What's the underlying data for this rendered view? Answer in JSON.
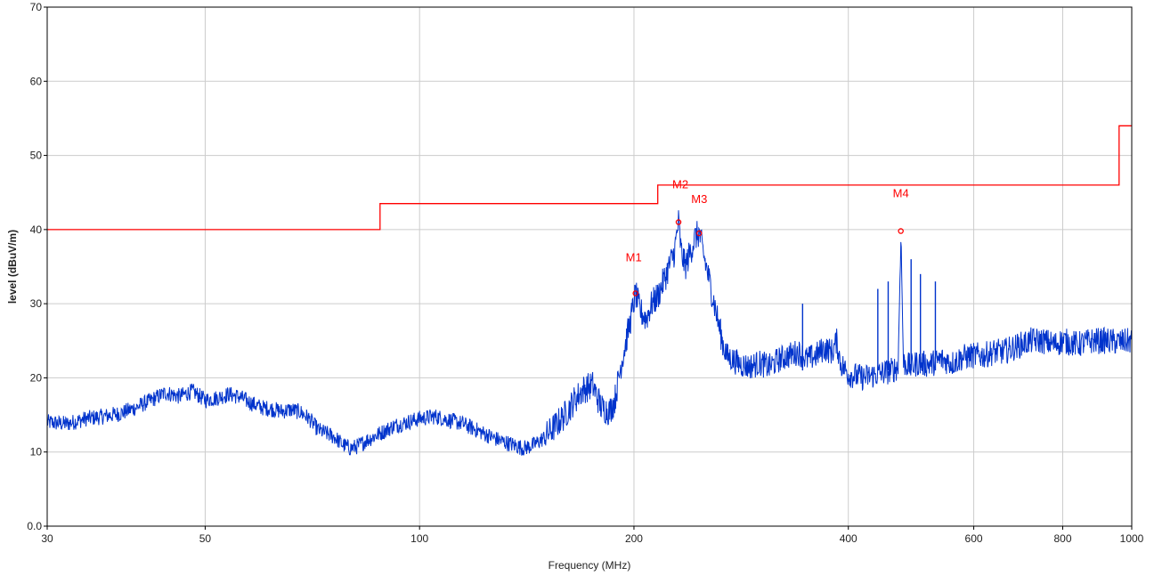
{
  "chart_data": {
    "type": "line",
    "title": "",
    "xlabel": "Frequency (MHz)",
    "ylabel": "level (dBuV/m)",
    "x_scale": "log",
    "xlim": [
      30,
      1000
    ],
    "ylim": [
      0,
      70
    ],
    "grid": true,
    "x_ticks": [
      30,
      50,
      100,
      200,
      400,
      600,
      800,
      1000
    ],
    "x_tick_labels": [
      "30",
      "50",
      "100",
      "200",
      "400",
      "600",
      "800",
      "1000"
    ],
    "y_ticks": [
      0,
      10,
      20,
      30,
      40,
      50,
      60,
      70
    ],
    "y_tick_labels": [
      "0.0",
      "10",
      "20",
      "30",
      "40",
      "50",
      "60",
      "70"
    ],
    "colors": {
      "limit": "#ff0000",
      "measurement": "#0033cc",
      "markers": "#ff0000",
      "grid": "#cccccc",
      "axis": "#000000"
    },
    "series": [
      {
        "role": "limit",
        "color": "#ff0000",
        "points": [
          [
            30,
            40
          ],
          [
            88,
            40
          ],
          [
            88,
            43.5
          ],
          [
            216,
            43.5
          ],
          [
            216,
            46
          ],
          [
            960,
            46
          ],
          [
            960,
            54
          ],
          [
            1000,
            54
          ]
        ]
      },
      {
        "role": "measurement",
        "color": "#0033cc",
        "points": [
          [
            30,
            14
          ],
          [
            32,
            13.8
          ],
          [
            34,
            14.5
          ],
          [
            36,
            14.8
          ],
          [
            38,
            15.2
          ],
          [
            40,
            16
          ],
          [
            42,
            17
          ],
          [
            44,
            18
          ],
          [
            46,
            17.5
          ],
          [
            48,
            18.2
          ],
          [
            50,
            17
          ],
          [
            52,
            17.3
          ],
          [
            54,
            17.8
          ],
          [
            56,
            17.4
          ],
          [
            58,
            16.6
          ],
          [
            60,
            16
          ],
          [
            62,
            15.8
          ],
          [
            64,
            15.5
          ],
          [
            66,
            15.7
          ],
          [
            68,
            15.4
          ],
          [
            70,
            14.5
          ],
          [
            72,
            13
          ],
          [
            74,
            12.5
          ],
          [
            76,
            12
          ],
          [
            78,
            11
          ],
          [
            80,
            10.5
          ],
          [
            82,
            10.8
          ],
          [
            84,
            11.5
          ],
          [
            88,
            12.5
          ],
          [
            92,
            13.5
          ],
          [
            96,
            14
          ],
          [
            100,
            14.5
          ],
          [
            105,
            14.8
          ],
          [
            110,
            14.3
          ],
          [
            115,
            13.8
          ],
          [
            120,
            13
          ],
          [
            125,
            12.2
          ],
          [
            130,
            11.5
          ],
          [
            135,
            11
          ],
          [
            140,
            10.5
          ],
          [
            145,
            11
          ],
          [
            150,
            12
          ],
          [
            155,
            13.5
          ],
          [
            160,
            15
          ],
          [
            165,
            17
          ],
          [
            170,
            18.5
          ],
          [
            175,
            19
          ],
          [
            180,
            16
          ],
          [
            185,
            15.5
          ],
          [
            188,
            17
          ],
          [
            192,
            22
          ],
          [
            196,
            26
          ],
          [
            199,
            29
          ],
          [
            201,
            31.4
          ],
          [
            204,
            29
          ],
          [
            208,
            28
          ],
          [
            212,
            30
          ],
          [
            216,
            31
          ],
          [
            220,
            33
          ],
          [
            224,
            35
          ],
          [
            228,
            37
          ],
          [
            231,
            41
          ],
          [
            233,
            37
          ],
          [
            236,
            35
          ],
          [
            240,
            37
          ],
          [
            244,
            39
          ],
          [
            247,
            39.5
          ],
          [
            250,
            37
          ],
          [
            254,
            34
          ],
          [
            258,
            31
          ],
          [
            262,
            28
          ],
          [
            266,
            25
          ],
          [
            270,
            23
          ],
          [
            280,
            22
          ],
          [
            290,
            21.5
          ],
          [
            300,
            22
          ],
          [
            310,
            21.5
          ],
          [
            320,
            22.5
          ],
          [
            330,
            23
          ],
          [
            340,
            23.5
          ],
          [
            350,
            22.5
          ],
          [
            360,
            23
          ],
          [
            370,
            24
          ],
          [
            380,
            23.5
          ],
          [
            385,
            25
          ],
          [
            390,
            22
          ],
          [
            400,
            20.5
          ],
          [
            420,
            20
          ],
          [
            440,
            20.5
          ],
          [
            460,
            21
          ],
          [
            470,
            21.5
          ],
          [
            474,
            39.8
          ],
          [
            478,
            22
          ],
          [
            490,
            21.5
          ],
          [
            500,
            22
          ],
          [
            520,
            21.8
          ],
          [
            540,
            22.5
          ],
          [
            560,
            22
          ],
          [
            580,
            22.8
          ],
          [
            600,
            23
          ],
          [
            620,
            23
          ],
          [
            640,
            23.5
          ],
          [
            660,
            23.5
          ],
          [
            680,
            24
          ],
          [
            700,
            24.5
          ],
          [
            720,
            25
          ],
          [
            750,
            25
          ],
          [
            780,
            24.5
          ],
          [
            800,
            25
          ],
          [
            840,
            24.5
          ],
          [
            880,
            25
          ],
          [
            920,
            25
          ],
          [
            960,
            24.8
          ],
          [
            1000,
            25
          ]
        ]
      }
    ],
    "spikes": [
      {
        "x": 490,
        "y": 36
      },
      {
        "x": 505,
        "y": 34
      },
      {
        "x": 530,
        "y": 33
      },
      {
        "x": 455,
        "y": 33
      },
      {
        "x": 440,
        "y": 32
      },
      {
        "x": 345,
        "y": 30
      }
    ],
    "markers": [
      {
        "label": "M1",
        "x": 201,
        "y": 31.4
      },
      {
        "label": "M2",
        "x": 231,
        "y": 41
      },
      {
        "label": "M3",
        "x": 247,
        "y": 39.5
      },
      {
        "label": "M4",
        "x": 474,
        "y": 39.8
      }
    ]
  }
}
